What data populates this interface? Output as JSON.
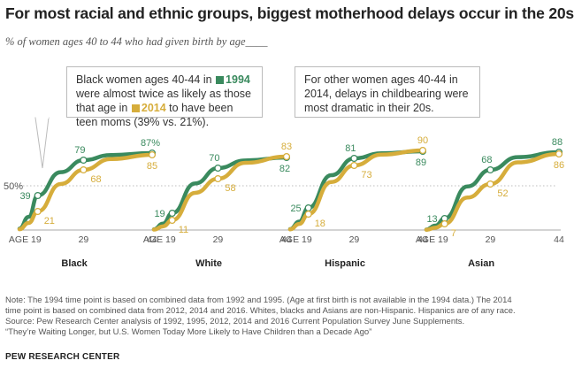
{
  "title": "For most racial and ethnic groups, biggest motherhood delays occur in the 20s",
  "subtitle": "% of women ages 40 to 44 who had given birth by age____",
  "callout_left": {
    "part1": "Black women ages 40-44 in",
    "year1": "1994",
    "part2": "were almost twice as likely as those that age in",
    "year2": "2014",
    "part3": "to have been teen moms (39% vs. 21%)."
  },
  "callout_right": "For other women ages 40-44 in 2014, delays in childbearing were most dramatic in their 20s.",
  "colors": {
    "y1994": "#3a8a5e",
    "y2014": "#d6ad3b"
  },
  "chart_data": {
    "type": "line",
    "y_reference": {
      "value": 50,
      "label": "50%"
    },
    "x_ticks": [
      "AGE 19",
      "29",
      "44"
    ],
    "series_names": [
      "1994",
      "2014"
    ],
    "panels": [
      {
        "group": "Black",
        "series": [
          {
            "name": "1994",
            "label_points": [
              {
                "age": 19,
                "value": 39,
                "label": "39"
              },
              {
                "age": 29,
                "value": 79,
                "label": "79"
              },
              {
                "age": 44,
                "value": 87,
                "label": "87%"
              }
            ]
          },
          {
            "name": "2014",
            "label_points": [
              {
                "age": 19,
                "value": 21,
                "label": "21"
              },
              {
                "age": 29,
                "value": 68,
                "label": "68"
              },
              {
                "age": 44,
                "value": 85,
                "label": "85"
              }
            ]
          }
        ]
      },
      {
        "group": "White",
        "series": [
          {
            "name": "1994",
            "label_points": [
              {
                "age": 19,
                "value": 19,
                "label": "19"
              },
              {
                "age": 29,
                "value": 70,
                "label": "70"
              },
              {
                "age": 44,
                "value": 82,
                "label": "82"
              }
            ]
          },
          {
            "name": "2014",
            "label_points": [
              {
                "age": 19,
                "value": 11,
                "label": "11"
              },
              {
                "age": 29,
                "value": 58,
                "label": "58"
              },
              {
                "age": 44,
                "value": 83,
                "label": "83"
              }
            ]
          }
        ]
      },
      {
        "group": "Hispanic",
        "series": [
          {
            "name": "1994",
            "label_points": [
              {
                "age": 19,
                "value": 25,
                "label": "25"
              },
              {
                "age": 29,
                "value": 81,
                "label": "81"
              },
              {
                "age": 44,
                "value": 89,
                "label": "89"
              }
            ]
          },
          {
            "name": "2014",
            "label_points": [
              {
                "age": 19,
                "value": 18,
                "label": "18"
              },
              {
                "age": 29,
                "value": 73,
                "label": "73"
              },
              {
                "age": 44,
                "value": 90,
                "label": "90"
              }
            ]
          }
        ]
      },
      {
        "group": "Asian",
        "series": [
          {
            "name": "1994",
            "label_points": [
              {
                "age": 19,
                "value": 13,
                "label": "13"
              },
              {
                "age": 29,
                "value": 68,
                "label": "68"
              },
              {
                "age": 44,
                "value": 88,
                "label": "88"
              }
            ]
          },
          {
            "name": "2014",
            "label_points": [
              {
                "age": 19,
                "value": 7,
                "label": "7"
              },
              {
                "age": 29,
                "value": 52,
                "label": "52"
              },
              {
                "age": 44,
                "value": 86,
                "label": "86"
              }
            ]
          }
        ]
      }
    ]
  },
  "notes": [
    "Note: The 1994 time point is based on combined data from 1992 and 1995. (Age at first birth is not available in the 1994 data.) The 2014",
    "time point is based on combined data from 2012, 2014 and 2016. Whites, blacks and Asians are non-Hispanic. Hispanics are of any race.",
    "Source: Pew Research Center analysis of 1992, 1995, 2012, 2014 and 2016 Current Population Survey June Supplements.",
    "“They’re Waiting Longer, but U.S. Women Today More Likely to Have Children than a Decade Ago”"
  ],
  "org": "PEW RESEARCH CENTER"
}
